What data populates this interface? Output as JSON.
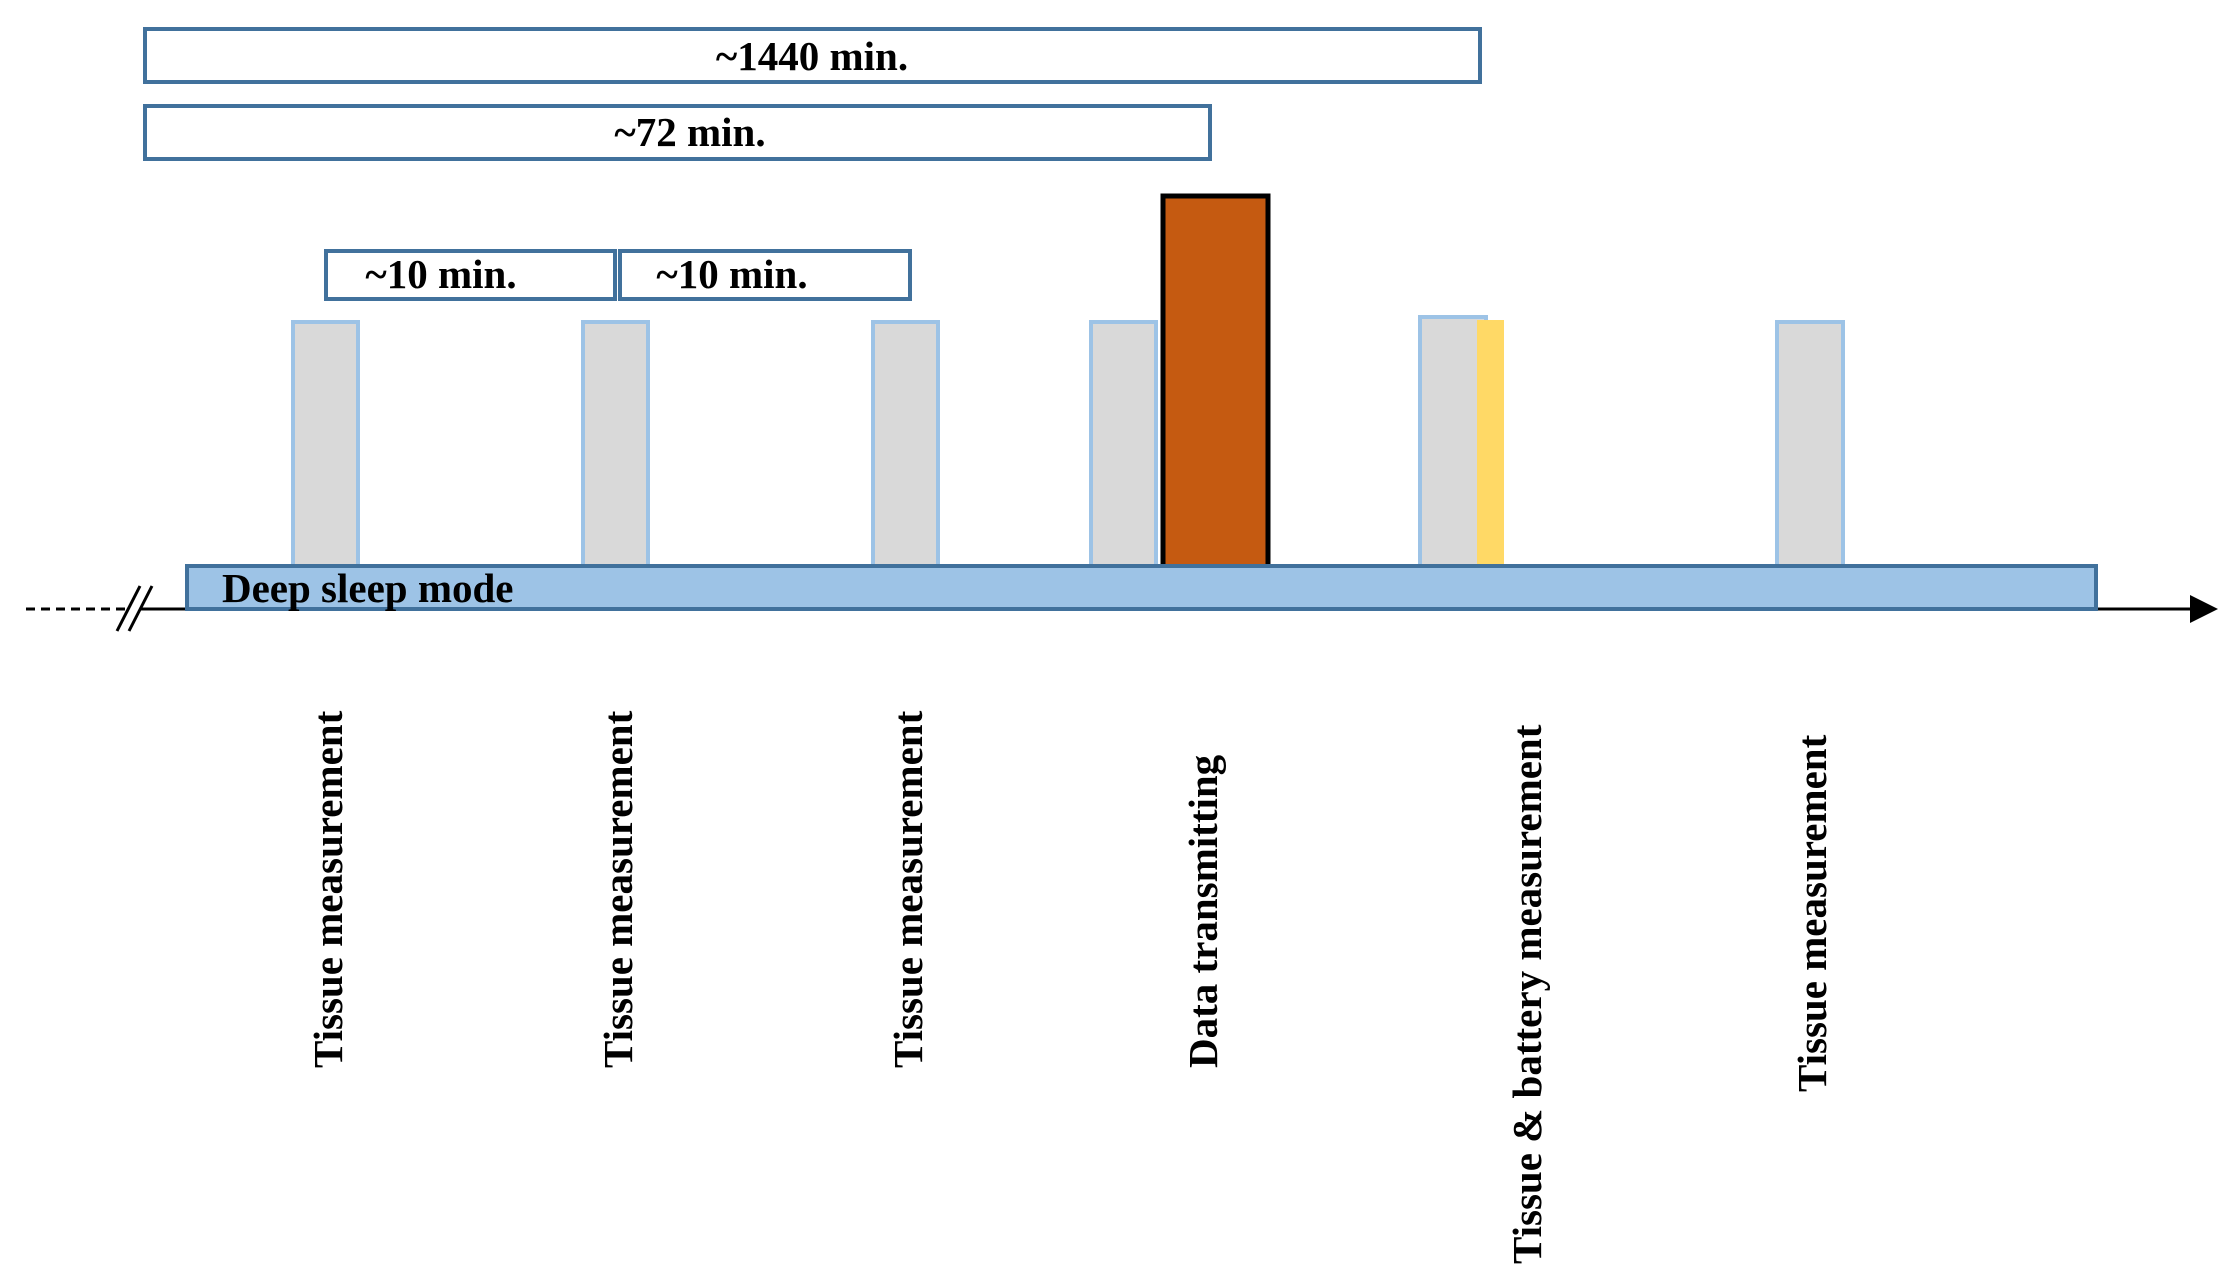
{
  "colors": {
    "span_border": "#41719C",
    "measure_fill": "#D9D9D9",
    "measure_border": "#9DC3E6",
    "transmit_fill": "#C55A11",
    "transmit_border": "#000000",
    "battery_fill": "#FFD966",
    "band_fill": "#9DC3E6",
    "band_border": "#41719C",
    "axis": "#000000"
  },
  "spans": [
    {
      "id": "span-1440",
      "label": "~1440 min."
    },
    {
      "id": "span-72",
      "label": "~72 min."
    },
    {
      "id": "span-10a",
      "label": "~10 min."
    },
    {
      "id": "span-10b",
      "label": "~10 min."
    }
  ],
  "band": {
    "label": "Deep sleep mode"
  },
  "events": [
    {
      "id": "event-1",
      "kind": "tissue",
      "label": "Tissue measurement"
    },
    {
      "id": "event-2",
      "kind": "tissue",
      "label": "Tissue measurement"
    },
    {
      "id": "event-3",
      "kind": "tissue",
      "label": "Tissue measurement"
    },
    {
      "id": "event-4",
      "kind": "tissue",
      "label": ""
    },
    {
      "id": "event-transmit",
      "kind": "transmit",
      "label": "Data transmitting"
    },
    {
      "id": "event-5",
      "kind": "tissue-battery",
      "label": "Tissue & battery measurement"
    },
    {
      "id": "event-6",
      "kind": "tissue",
      "label": "Tissue measurement"
    }
  ]
}
